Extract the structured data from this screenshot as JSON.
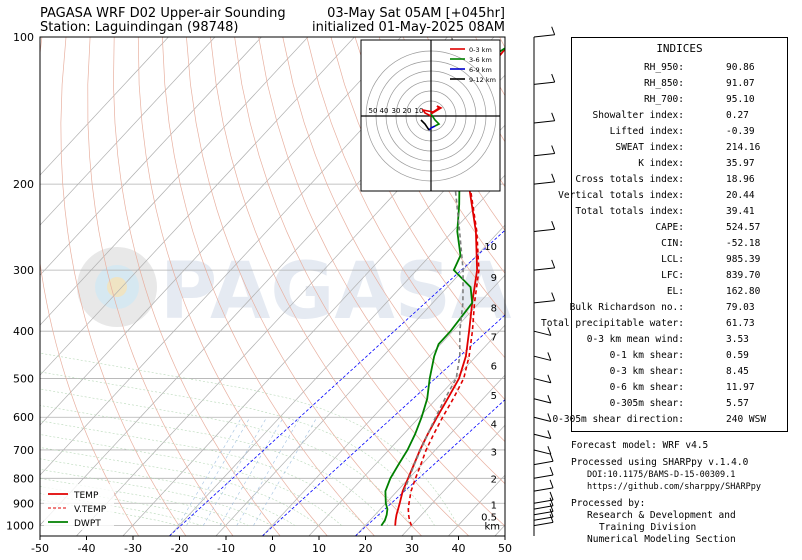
{
  "header": {
    "left_line1": "PAGASA WRF D02 Upper-air Sounding",
    "left_line2": "Station: Laguindingan (98748)",
    "right_line1": "03-May Sat 05AM [+045hr]",
    "right_line2": "initialized 01-May-2025 08AM"
  },
  "watermark": "PAGASA",
  "chart_data": {
    "type": "line",
    "title": "PAGASA WRF D02 Upper-air Sounding",
    "x_axis": {
      "label": "",
      "range": [
        -50,
        50
      ],
      "ticks": [
        -50,
        -40,
        -30,
        -20,
        -10,
        0,
        10,
        20,
        30,
        40,
        50
      ]
    },
    "y_axis": {
      "label": "",
      "scale": "log",
      "range": [
        1050,
        100
      ],
      "ticks": [
        1000,
        900,
        800,
        700,
        600,
        500,
        400,
        300,
        200,
        100
      ]
    },
    "height_axis": {
      "unit": "km",
      "ticks": [
        "0.5",
        "1",
        "2",
        "3",
        "4",
        "5",
        "6",
        "7",
        "8",
        "9",
        "10"
      ]
    },
    "legend": {
      "placement": "bottom-left",
      "entries": [
        {
          "name": "TEMP",
          "color": "#e00000",
          "style": "solid"
        },
        {
          "name": "V.TEMP",
          "color": "#e00000",
          "style": "dashed"
        },
        {
          "name": "DWPT",
          "color": "#008000",
          "style": "solid"
        }
      ]
    },
    "series": [
      {
        "name": "TEMP",
        "color": "#e00000",
        "points": [
          [
            1000,
            26.5
          ],
          [
            975,
            25.5
          ],
          [
            950,
            24.6
          ],
          [
            925,
            23.8
          ],
          [
            900,
            23
          ],
          [
            850,
            21.2
          ],
          [
            800,
            19.8
          ],
          [
            750,
            18.3
          ],
          [
            700,
            16.7
          ],
          [
            650,
            15.2
          ],
          [
            600,
            13.8
          ],
          [
            550,
            12.4
          ],
          [
            500,
            10.8
          ],
          [
            450,
            7.8
          ],
          [
            400,
            3.5
          ],
          [
            350,
            -1.5
          ],
          [
            300,
            -7
          ],
          [
            250,
            -15
          ],
          [
            200,
            -26
          ],
          [
            175,
            -32.5
          ],
          [
            150,
            -38
          ],
          [
            125,
            -42.5
          ],
          [
            110,
            -45
          ],
          [
            100,
            -45.5
          ]
        ]
      },
      {
        "name": "V.TEMP",
        "color": "#e00000",
        "dashed": true,
        "points": [
          [
            1000,
            30
          ],
          [
            975,
            28.5
          ],
          [
            950,
            27.2
          ],
          [
            925,
            26
          ],
          [
            900,
            25
          ],
          [
            850,
            23
          ],
          [
            800,
            21.4
          ],
          [
            750,
            19.8
          ],
          [
            700,
            18
          ],
          [
            650,
            16.5
          ],
          [
            600,
            15
          ],
          [
            550,
            13.6
          ],
          [
            500,
            11.8
          ],
          [
            450,
            8.5
          ],
          [
            400,
            4.2
          ],
          [
            350,
            -1
          ],
          [
            300,
            -6.6
          ],
          [
            250,
            -14.8
          ],
          [
            200,
            -25.8
          ]
        ]
      },
      {
        "name": "DWPT",
        "color": "#008000",
        "points": [
          [
            1000,
            23.5
          ],
          [
            975,
            23.2
          ],
          [
            950,
            22.5
          ],
          [
            925,
            21.5
          ],
          [
            900,
            20
          ],
          [
            850,
            17.5
          ],
          [
            800,
            16
          ],
          [
            750,
            15
          ],
          [
            700,
            14
          ],
          [
            650,
            12.5
          ],
          [
            600,
            10.5
          ],
          [
            550,
            8
          ],
          [
            500,
            4.5
          ],
          [
            450,
            1
          ],
          [
            425,
            -0.5
          ],
          [
            400,
            -0.5
          ],
          [
            350,
            -1.5
          ],
          [
            325,
            -5
          ],
          [
            300,
            -12
          ],
          [
            280,
            -13.5
          ],
          [
            250,
            -19
          ],
          [
            220,
            -24
          ],
          [
            200,
            -28
          ],
          [
            175,
            -35
          ],
          [
            160,
            -42
          ],
          [
            150,
            -46
          ],
          [
            140,
            -46.5
          ],
          [
            130,
            -46.5
          ],
          [
            120,
            -47
          ],
          [
            110,
            -46.5
          ],
          [
            100,
            -44
          ]
        ]
      },
      {
        "name": "",
        "color": "#808080",
        "dashed": true,
        "points": [
          [
            850,
            21.5
          ],
          [
            800,
            20
          ],
          [
            750,
            18.4
          ],
          [
            700,
            16.8
          ],
          [
            650,
            15.2
          ],
          [
            600,
            13.5
          ],
          [
            550,
            11.8
          ],
          [
            500,
            10.2
          ],
          [
            450,
            6.5
          ],
          [
            400,
            1.5
          ],
          [
            350,
            -3.5
          ],
          [
            300,
            -10
          ],
          [
            250,
            -18.5
          ],
          [
            200,
            -29
          ],
          [
            175,
            -35.5
          ],
          [
            150,
            -42
          ],
          [
            125,
            -50
          ],
          [
            110,
            -55
          ],
          [
            100,
            -59
          ]
        ]
      }
    ],
    "hodograph": {
      "legend": [
        {
          "name": "0-3 km",
          "color": "#e00000"
        },
        {
          "name": "3-6 km",
          "color": "#008000"
        },
        {
          "name": "6-9 km",
          "color": "#0000cc"
        },
        {
          "name": "9-12 km",
          "color": "#000000"
        }
      ],
      "ring_labels": [
        "50",
        "40",
        "30",
        "20",
        "10"
      ]
    },
    "wind_barbs": {
      "pressures": [
        1000,
        975,
        950,
        925,
        900,
        850,
        800,
        750,
        700,
        650,
        600,
        550,
        500,
        450,
        400,
        350,
        300,
        250,
        200,
        175,
        150,
        125,
        100
      ]
    }
  },
  "indices": {
    "title": "INDICES",
    "rows": [
      {
        "label": "RH_950:",
        "value": "90.86"
      },
      {
        "label": "RH_850:",
        "value": "91.07"
      },
      {
        "label": "RH_700:",
        "value": "95.10"
      },
      {
        "label": "Showalter index:",
        "value": "0.27"
      },
      {
        "label": "Lifted index:",
        "value": "-0.39"
      },
      {
        "label": "SWEAT index:",
        "value": "214.16"
      },
      {
        "label": "K index:",
        "value": "35.97"
      },
      {
        "label": "Cross totals index:",
        "value": "18.96"
      },
      {
        "label": "Vertical totals index:",
        "value": "20.44"
      },
      {
        "label": "Total totals index:",
        "value": "39.41"
      },
      {
        "label": "CAPE:",
        "value": "524.57"
      },
      {
        "label": "CIN:",
        "value": "-52.18"
      },
      {
        "label": "LCL:",
        "value": "985.39"
      },
      {
        "label": "LFC:",
        "value": "839.70"
      },
      {
        "label": "EL:",
        "value": "162.80"
      },
      {
        "label": "Bulk Richardson no.:",
        "value": "79.03"
      },
      {
        "label": "Total precipitable water:",
        "value": "61.73"
      },
      {
        "label": "0-3 km mean wind:",
        "value": "3.53"
      },
      {
        "label": "0-1 km shear:",
        "value": "0.59"
      },
      {
        "label": "0-3 km shear:",
        "value": "8.45"
      },
      {
        "label": "0-6 km shear:",
        "value": "11.97"
      },
      {
        "label": "0-305m shear:",
        "value": "5.57"
      },
      {
        "label": "0-305m shear direction:",
        "value": "240 WSW"
      }
    ]
  },
  "footer": {
    "forecast_model": "Forecast model: WRF v4.5",
    "processed_using": "Processed using SHARPpy v.1.4.0",
    "doi": "DOI:10.1175/BAMS-D-15-00309.1",
    "url": "https://github.com/sharppy/SHARPpy",
    "processed_by": "Processed by:",
    "org_line1": "Research & Development and",
    "org_line2": "Training Division",
    "org_line3": "Numerical Modeling Section"
  }
}
